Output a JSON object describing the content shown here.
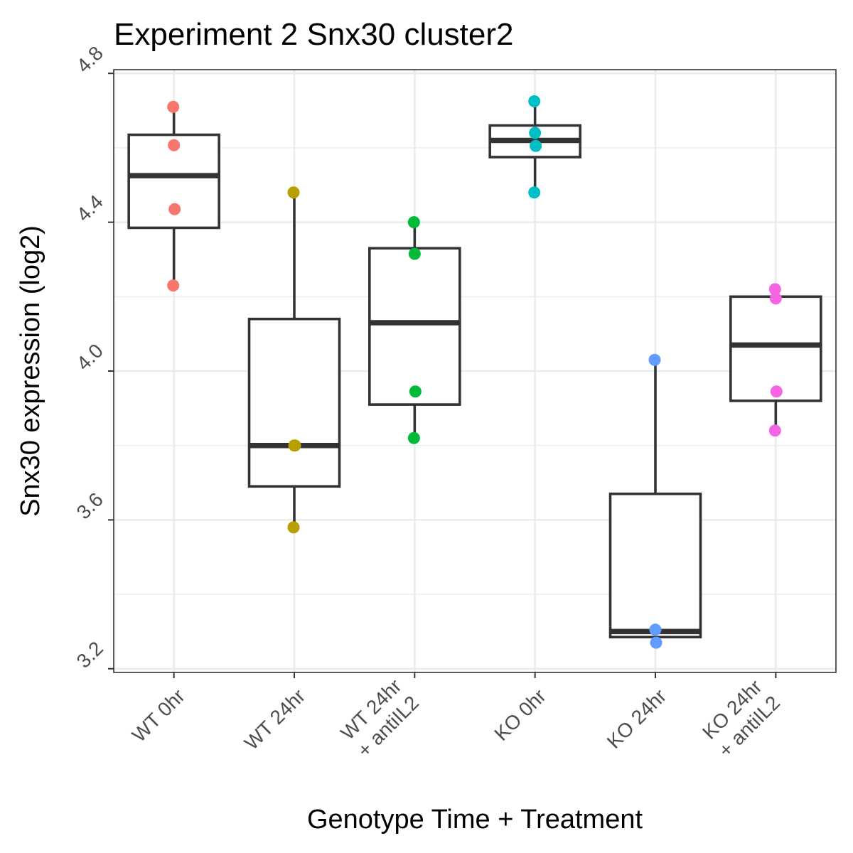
{
  "chart_data": {
    "type": "box",
    "title": "Experiment 2 Snx30 cluster2",
    "xlabel": "Genotype Time + Treatment",
    "ylabel": "Snx30 expression (log2)",
    "ylim": [
      3.19,
      4.81
    ],
    "yticks": [
      "3.2",
      "3.6",
      "4.0",
      "4.4",
      "4.8"
    ],
    "grid": true,
    "categories": [
      {
        "label": [
          "WT 0hr"
        ],
        "color": "#F8766D",
        "box": {
          "lower_whisker": 4.23,
          "q1": 4.385,
          "median": 4.525,
          "q3": 4.635,
          "upper_whisker": 4.71
        },
        "points": [
          4.71,
          4.607,
          4.435,
          4.23
        ]
      },
      {
        "label": [
          "WT 24hr"
        ],
        "color": "#B79F00",
        "box": {
          "lower_whisker": 3.58,
          "q1": 3.69,
          "median": 3.8,
          "q3": 4.14,
          "upper_whisker": 4.48
        },
        "points": [
          4.48,
          3.8,
          3.8,
          3.58
        ]
      },
      {
        "label": [
          "WT 24hr",
          "+ antiIL2"
        ],
        "color": "#00BA38",
        "box": {
          "lower_whisker": 3.82,
          "q1": 3.91,
          "median": 4.13,
          "q3": 4.33,
          "upper_whisker": 4.4
        },
        "points": [
          4.4,
          4.315,
          3.945,
          3.82
        ]
      },
      {
        "label": [
          "KO 0hr"
        ],
        "color": "#00BFC4",
        "box": {
          "lower_whisker": 4.48,
          "q1": 4.575,
          "median": 4.62,
          "q3": 4.66,
          "upper_whisker": 4.725
        },
        "points": [
          4.725,
          4.64,
          4.605,
          4.48
        ]
      },
      {
        "label": [
          "KO 24hr"
        ],
        "color": "#619CFF",
        "box": {
          "lower_whisker": 3.27,
          "q1": 3.285,
          "median": 3.3,
          "q3": 3.67,
          "upper_whisker": 4.03
        },
        "points": [
          4.03,
          3.305,
          3.27
        ]
      },
      {
        "label": [
          "KO 24hr",
          "+ antiIL2"
        ],
        "color": "#F564E3",
        "box": {
          "lower_whisker": 3.84,
          "q1": 3.92,
          "median": 4.07,
          "q3": 4.2,
          "upper_whisker": 4.22
        },
        "points": [
          4.22,
          4.195,
          3.945,
          3.84
        ]
      }
    ]
  }
}
